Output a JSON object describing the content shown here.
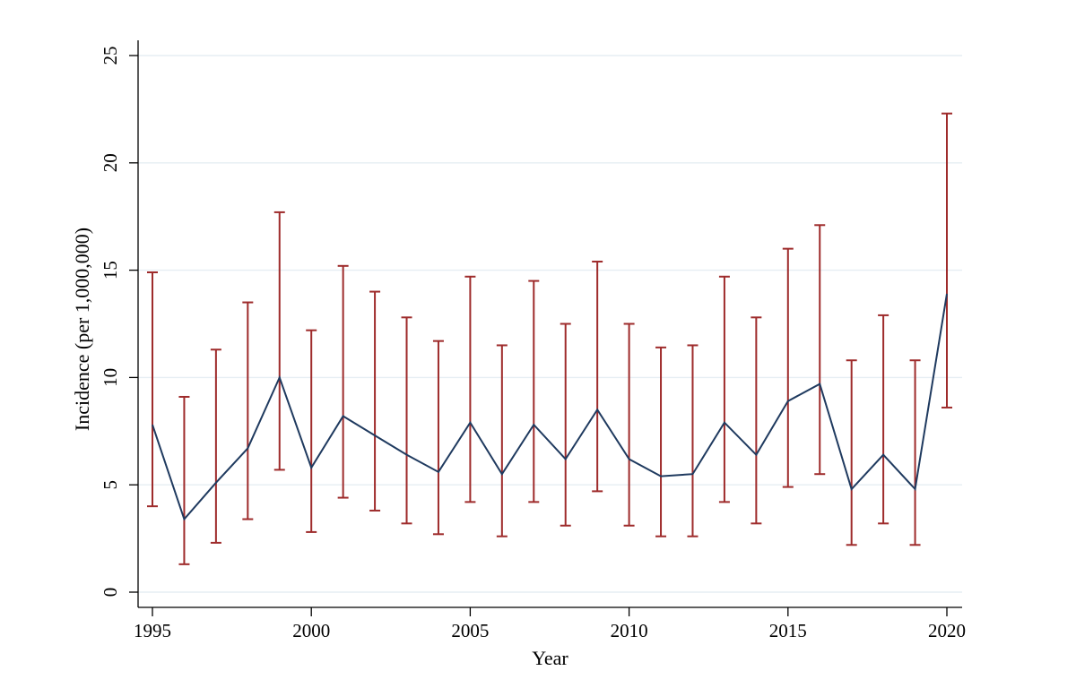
{
  "chart_data": {
    "type": "line",
    "xlabel": "Year",
    "ylabel": "Incidence (per 1,000,000)",
    "xlim": [
      1995,
      2020
    ],
    "ylim": [
      0,
      25
    ],
    "x_ticks": [
      1995,
      2000,
      2005,
      2010,
      2015,
      2020
    ],
    "y_ticks": [
      0,
      5,
      10,
      15,
      20,
      25
    ],
    "grid": true,
    "colors": {
      "line": "#1f3a5f",
      "ci": "#9e2b2b",
      "grid": "#e6eef3"
    },
    "x": [
      1995,
      1996,
      1997,
      1998,
      1999,
      2000,
      2001,
      2002,
      2003,
      2004,
      2005,
      2006,
      2007,
      2008,
      2009,
      2010,
      2011,
      2012,
      2013,
      2014,
      2015,
      2016,
      2017,
      2018,
      2019,
      2020
    ],
    "series": [
      {
        "values": [
          7.8,
          3.4,
          5.1,
          6.7,
          10.0,
          5.8,
          8.2,
          7.3,
          6.4,
          5.6,
          7.9,
          5.5,
          7.8,
          6.2,
          8.5,
          6.2,
          5.4,
          5.5,
          7.9,
          6.4,
          8.9,
          9.7,
          4.8,
          6.4,
          4.8,
          13.9
        ],
        "ci_lower": [
          4.0,
          1.3,
          2.3,
          3.4,
          5.7,
          2.8,
          4.4,
          3.8,
          3.2,
          2.7,
          4.2,
          2.6,
          4.2,
          3.1,
          4.7,
          3.1,
          2.6,
          2.6,
          4.2,
          3.2,
          4.9,
          5.5,
          2.2,
          3.2,
          2.2,
          8.6
        ],
        "ci_upper": [
          14.9,
          9.1,
          11.3,
          13.5,
          17.7,
          12.2,
          15.2,
          14.0,
          12.8,
          11.7,
          14.7,
          11.5,
          14.5,
          12.5,
          15.4,
          12.5,
          11.4,
          11.5,
          14.7,
          12.8,
          16.0,
          17.1,
          10.8,
          12.9,
          10.8,
          22.3
        ]
      }
    ]
  }
}
